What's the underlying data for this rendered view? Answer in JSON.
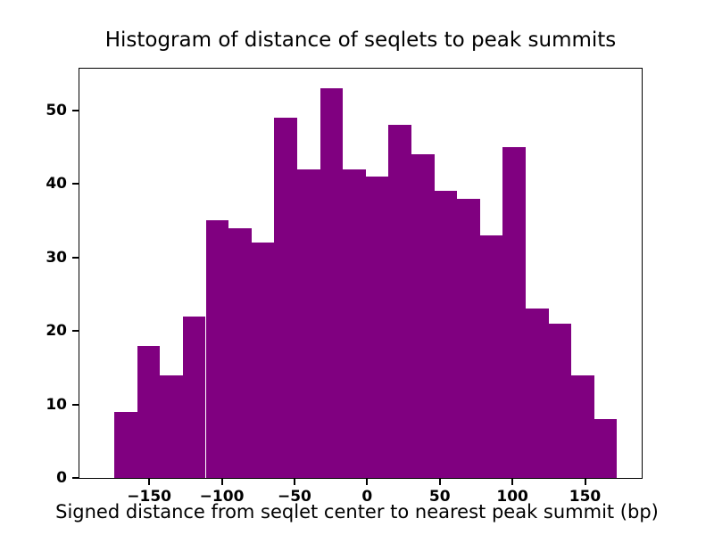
{
  "chart_data": {
    "type": "bar",
    "subtype": "histogram",
    "title": "Histogram of distance of seqlets to peak summits",
    "xlabel": "Signed distance from seqlet center to nearest peak summit (bp)",
    "ylabel": "",
    "bar_color": "#800080",
    "background_color": "#ffffff",
    "axis_color": "#000000",
    "grid": false,
    "legend": false,
    "bin_start": -174,
    "bin_width": 15.73,
    "values": [
      9,
      18,
      14,
      22,
      35,
      34,
      32,
      49,
      42,
      53,
      42,
      41,
      48,
      44,
      39,
      38,
      33,
      45,
      23,
      21,
      14,
      8
    ],
    "xlim": [
      -198,
      189
    ],
    "ylim": [
      0,
      55.65
    ],
    "xticks": [
      {
        "value": -150,
        "label": "−150"
      },
      {
        "value": -100,
        "label": "−100"
      },
      {
        "value": -50,
        "label": "−50"
      },
      {
        "value": 0,
        "label": "0"
      },
      {
        "value": 50,
        "label": "50"
      },
      {
        "value": 100,
        "label": "100"
      },
      {
        "value": 150,
        "label": "150"
      }
    ],
    "yticks": [
      {
        "value": 0,
        "label": "0"
      },
      {
        "value": 10,
        "label": "10"
      },
      {
        "value": 20,
        "label": "20"
      },
      {
        "value": 30,
        "label": "30"
      },
      {
        "value": 40,
        "label": "40"
      },
      {
        "value": 50,
        "label": "50"
      }
    ]
  }
}
